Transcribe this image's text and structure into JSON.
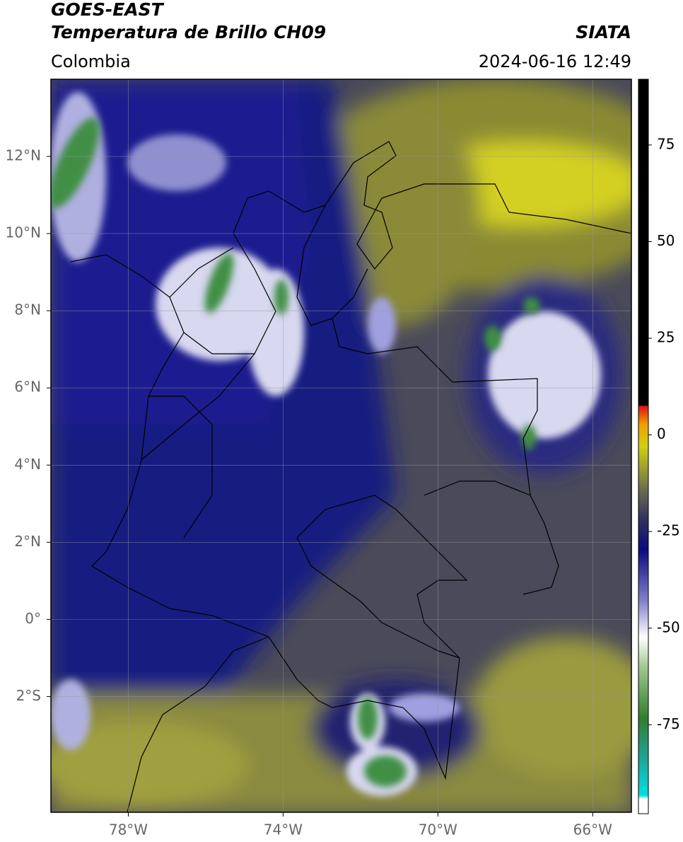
{
  "header": {
    "title": "GOES-EAST",
    "subtitle": "Temperatura de Brillo CH09",
    "source": "SIATA",
    "region": "Colombia",
    "datetime": "2024-06-16 12:49"
  },
  "map": {
    "xlim": [
      -80,
      -65
    ],
    "ylim": [
      -5,
      14
    ],
    "grid": true,
    "xticks": [
      {
        "value": -78,
        "label": "78°W"
      },
      {
        "value": -74,
        "label": "74°W"
      },
      {
        "value": -70,
        "label": "70°W"
      },
      {
        "value": -66,
        "label": "66°W"
      }
    ],
    "yticks": [
      {
        "value": 12,
        "label": "12°N"
      },
      {
        "value": 10,
        "label": "10°N"
      },
      {
        "value": 8,
        "label": "8°N"
      },
      {
        "value": 6,
        "label": "6°N"
      },
      {
        "value": 4,
        "label": "4°N"
      },
      {
        "value": 2,
        "label": "2°N"
      },
      {
        "value": 0,
        "label": "0°"
      },
      {
        "value": -2,
        "label": "2°S"
      }
    ]
  },
  "colorbar": {
    "lim": [
      -98,
      92
    ],
    "ticks": [
      75,
      50,
      25,
      0,
      -25,
      -50,
      -75
    ]
  }
}
